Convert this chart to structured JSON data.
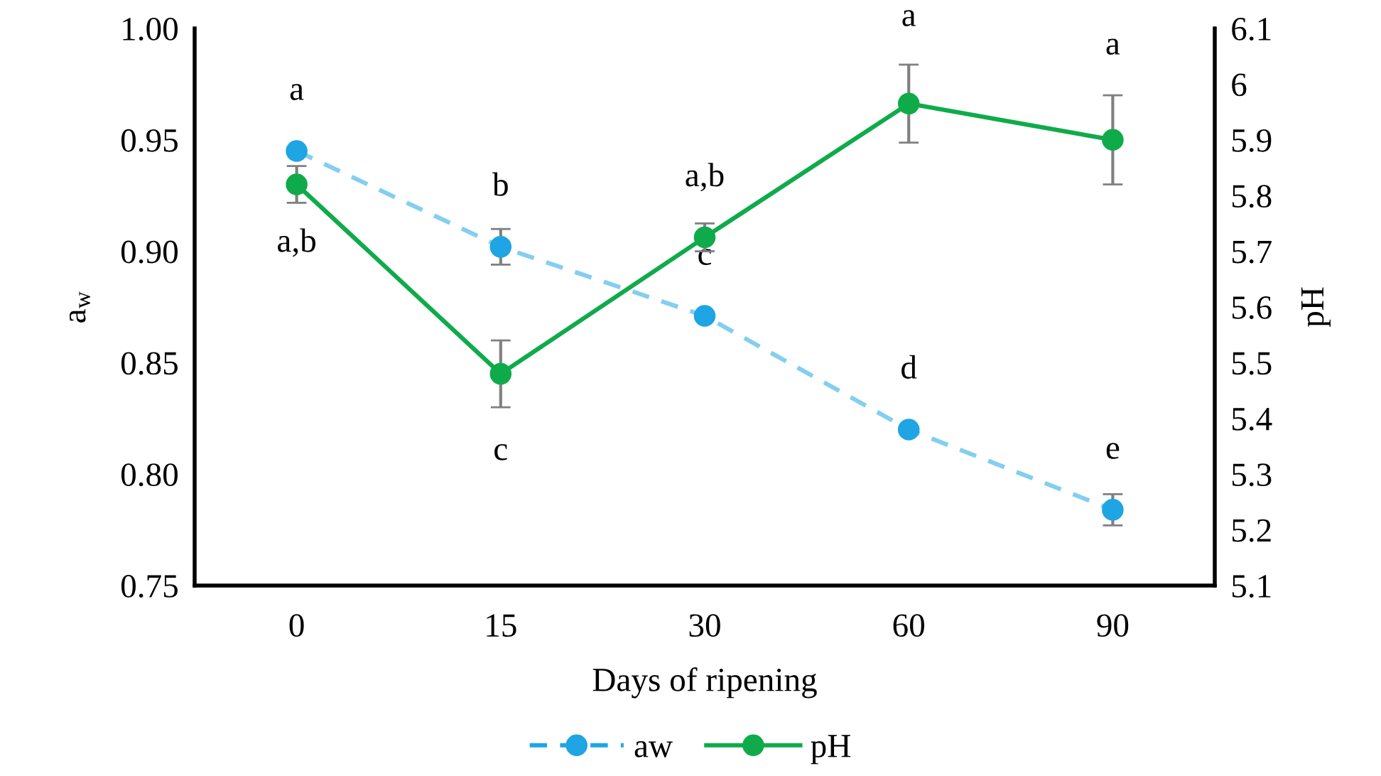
{
  "chart_data": {
    "type": "line",
    "xlabel": "Days of ripening",
    "ylabel": "a$_{w}$",
    "y2label": "pH",
    "categories": [
      "0",
      "15",
      "30",
      "60",
      "90"
    ],
    "series": [
      {
        "name": "aw",
        "color": "#1fa5e3",
        "line_style": "dashed",
        "marker": "circle",
        "values": [
          0.945,
          0.902,
          0.871,
          0.82,
          0.784
        ],
        "errors": [
          null,
          0.008,
          null,
          null,
          0.007
        ],
        "value_labels": [
          "a",
          "b",
          "c",
          "d",
          "e"
        ]
      },
      {
        "name": "pH",
        "color": "#0fab4b",
        "line_style": "solid",
        "marker": "circle",
        "axis": "y2",
        "values": [
          5.82,
          5.48,
          5.725,
          5.965,
          5.9
        ],
        "errors": [
          0.033,
          0.06,
          0.025,
          0.07,
          0.08
        ],
        "value_labels": [
          "a,b",
          "c",
          "a,b",
          "a",
          "a"
        ]
      }
    ],
    "ylim": [
      0.75,
      1.0
    ],
    "yticks": [
      {
        "value": 0.75,
        "label": "0.75"
      },
      {
        "value": 0.8,
        "label": "0.80"
      },
      {
        "value": 0.85,
        "label": "0.85"
      },
      {
        "value": 0.9,
        "label": "0.90"
      },
      {
        "value": 0.95,
        "label": "0.95"
      },
      {
        "value": 1.0,
        "label": "1.00"
      }
    ],
    "y2lim": [
      5.1,
      6.1
    ],
    "y2ticks": [
      5.1,
      5.2,
      5.3,
      5.4,
      5.5,
      5.6,
      5.7,
      5.8,
      5.9,
      {
        "value": 6.0,
        "label": "6"
      },
      6.1
    ],
    "grid": false,
    "legend": "bottom"
  }
}
